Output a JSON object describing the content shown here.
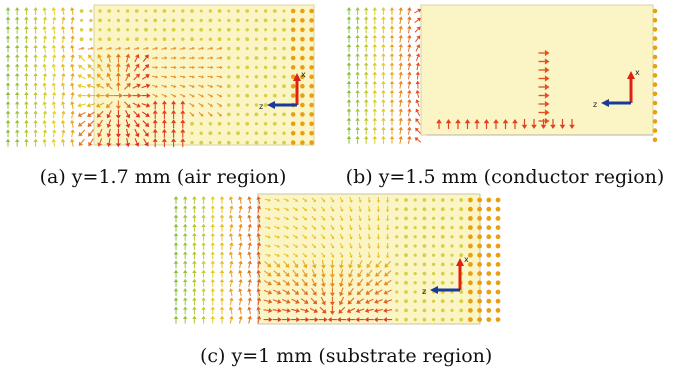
{
  "figure": {
    "panels": [
      {
        "id": "a",
        "caption": "(a) y=1.7 mm (air region)",
        "axis_labels": {
          "vertical": "x",
          "horizontal": "z"
        }
      },
      {
        "id": "b",
        "caption": "(b) y=1.5 mm (conductor region)",
        "axis_labels": {
          "vertical": "x",
          "horizontal": "z"
        }
      },
      {
        "id": "c",
        "caption": "(c) y=1 mm (substrate region)",
        "axis_labels": {
          "vertical": "x",
          "horizontal": "z"
        }
      }
    ],
    "colors": {
      "background_region": "#fbf5c6",
      "arrow_low": "#5fb84a",
      "arrow_mid": "#e8d020",
      "arrow_high": "#e03020",
      "dot": "#e8a010",
      "axis_vertical": "#e02010",
      "axis_horizontal": "#1a3a9a"
    }
  }
}
